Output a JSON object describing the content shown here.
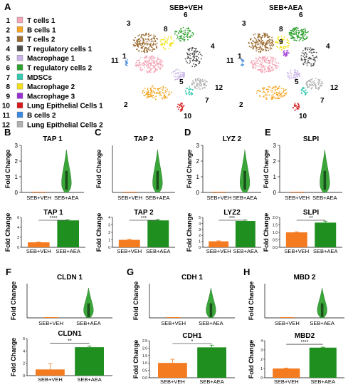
{
  "panel_letters": [
    "A",
    "B",
    "C",
    "D",
    "E",
    "F",
    "G",
    "H"
  ],
  "legend": {
    "items": [
      {
        "num": "1",
        "label": "T cells 1",
        "color": "#f4a6b7"
      },
      {
        "num": "2",
        "label": "B cells 1",
        "color": "#f6a623"
      },
      {
        "num": "3",
        "label": "T cells 2",
        "color": "#9a6a2e"
      },
      {
        "num": "4",
        "label": "T regulatory cells 1",
        "color": "#4d4d4d"
      },
      {
        "num": "5",
        "label": "Macrophage 1",
        "color": "#c9b3e6"
      },
      {
        "num": "6",
        "label": "T regulatory cells 2",
        "color": "#2ea02e"
      },
      {
        "num": "7",
        "label": "MDSCs",
        "color": "#35c9b0"
      },
      {
        "num": "8",
        "label": "Macrophage 2",
        "color": "#f2e11a"
      },
      {
        "num": "9",
        "label": "Macrophage 3",
        "color": "#9b2fd6"
      },
      {
        "num": "10",
        "label": "Lung Epithelial Cells 1",
        "color": "#d7191c"
      },
      {
        "num": "11",
        "label": "B cells 2",
        "color": "#3d87e0"
      },
      {
        "num": "12",
        "label": "Lung Epithelial Cells 2",
        "color": "#b0b0b0"
      }
    ]
  },
  "umap": {
    "left_title": "SEB+VEH",
    "right_title": "SEB+AEA",
    "left_labels": [
      "3",
      "8",
      "6",
      "4",
      "1",
      "11",
      "5",
      "2",
      "12",
      "7",
      "10"
    ],
    "right_labels": [
      "3",
      "8",
      "9",
      "6",
      "4",
      "1",
      "11",
      "5",
      "2",
      "12",
      "7",
      "10"
    ]
  },
  "common": {
    "fold_change": "Fold Change",
    "veh": "SEB+VEH",
    "aea": "SEB+AEA",
    "veh_color": "#f47b20",
    "aea_color": "#1f8f1f"
  },
  "chart_data": [
    {
      "panel": "B",
      "type": "violin",
      "title": "TAP 1",
      "ylim": [
        0,
        3
      ],
      "yticks": [
        "0",
        "1",
        "2",
        "3"
      ],
      "categories": [
        "SEB+VEH",
        "SEB+AEA"
      ]
    },
    {
      "panel": "C",
      "type": "violin",
      "title": "TAP 2",
      "ylim": [
        0,
        3
      ],
      "yticks": [
        "0",
        "1",
        "2",
        "3"
      ],
      "categories": [
        "SEB+VEH",
        "SEB+AEA"
      ]
    },
    {
      "panel": "D",
      "type": "violin",
      "title": "LYZ 2",
      "ylim": [
        0,
        3
      ],
      "yticks": [
        "0",
        "1",
        "2",
        "3"
      ],
      "categories": [
        "SEB+VEH",
        "SEB+AEA"
      ]
    },
    {
      "panel": "E",
      "type": "violin",
      "title": "SLPI",
      "ylim": [
        0,
        3
      ],
      "yticks": [
        "0",
        "1",
        "2",
        "3"
      ],
      "categories": [
        "SEB+VEH",
        "SEB+AEA"
      ]
    },
    {
      "panel": "B",
      "type": "bar",
      "title": "TAP 1",
      "categories": [
        "SEB+VEH",
        "SEB+AEA"
      ],
      "values": [
        1.0,
        5.4
      ],
      "errors": [
        0.08,
        0.12
      ],
      "ylim": [
        0,
        6
      ],
      "yticks": [
        "0",
        "2",
        "4",
        "6"
      ],
      "significance": "****"
    },
    {
      "panel": "C",
      "type": "bar",
      "title": "TAP 2",
      "categories": [
        "SEB+VEH",
        "SEB+AEA"
      ],
      "values": [
        1.0,
        3.6
      ],
      "errors": [
        0.1,
        0.12
      ],
      "ylim": [
        0,
        4
      ],
      "yticks": [
        "0",
        "1",
        "2",
        "3",
        "4"
      ],
      "significance": "***"
    },
    {
      "panel": "D",
      "type": "bar",
      "title": "LYZ2",
      "categories": [
        "SEB+VEH",
        "SEB+AEA"
      ],
      "values": [
        1.0,
        4.4
      ],
      "errors": [
        0.08,
        0.15
      ],
      "ylim": [
        0,
        5
      ],
      "yticks": [
        "0",
        "1",
        "2",
        "3",
        "4",
        "5"
      ],
      "significance": "***"
    },
    {
      "panel": "E",
      "type": "bar",
      "title": "SLPI",
      "categories": [
        "SEB+VEH",
        "SEB+AEA"
      ],
      "values": [
        1.0,
        1.65
      ],
      "errors": [
        0.04,
        0.1
      ],
      "ylim": [
        0,
        2
      ],
      "yticks": [
        "0.0",
        "0.5",
        "1.0",
        "1.5",
        "2.0"
      ],
      "significance": "**"
    },
    {
      "panel": "F",
      "type": "violin",
      "title": "CLDN 1",
      "categories": [
        "SEB+VEH",
        "SEB+AEA"
      ]
    },
    {
      "panel": "G",
      "type": "violin",
      "title": "CDH 1",
      "categories": [
        "SEB+VEH",
        "SEB+AEA"
      ]
    },
    {
      "panel": "H",
      "type": "violin",
      "title": "MBD 2",
      "categories": [
        "SEB+VEH",
        "SEB+AEA"
      ]
    },
    {
      "panel": "F",
      "type": "bar",
      "title": "CLDN1",
      "categories": [
        "SEB+VEH",
        "SEB+AEA"
      ],
      "values": [
        1.0,
        4.6
      ],
      "errors": [
        0.9,
        0.2
      ],
      "ylim": [
        0,
        6
      ],
      "yticks": [
        "0",
        "2",
        "4",
        "6"
      ],
      "significance": "**"
    },
    {
      "panel": "G",
      "type": "bar",
      "title": "CDH1",
      "categories": [
        "SEB+VEH",
        "SEB+AEA"
      ],
      "values": [
        1.0,
        2.05
      ],
      "errors": [
        0.25,
        0.15
      ],
      "ylim": [
        0,
        2.5
      ],
      "yticks": [
        "0.0",
        "0.5",
        "1.0",
        "1.5",
        "2.0",
        "2.5"
      ],
      "significance": "*"
    },
    {
      "panel": "H",
      "type": "bar",
      "title": "MBD2",
      "categories": [
        "SEB+VEH",
        "SEB+AEA"
      ],
      "values": [
        1.0,
        3.25
      ],
      "errors": [
        0.05,
        0.05
      ],
      "ylim": [
        0,
        4
      ],
      "yticks": [
        "0",
        "1",
        "2",
        "3",
        "4"
      ],
      "significance": "****"
    }
  ]
}
